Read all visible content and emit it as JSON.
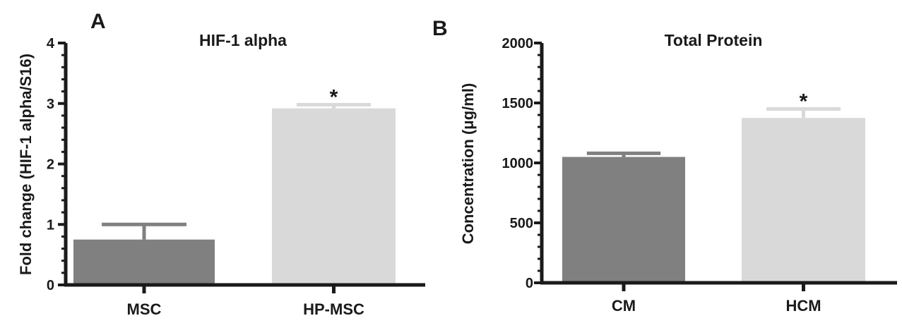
{
  "chart_data": [
    {
      "type": "bar",
      "panel_label": "A",
      "title": "HIF-1 alpha",
      "xlabel": "",
      "ylabel": "Fold change (HIF-1 alpha/S16)",
      "categories": [
        "MSC",
        "HP-MSC"
      ],
      "values": [
        0.75,
        2.92
      ],
      "error_upper": [
        1.0,
        2.98
      ],
      "significance": [
        "",
        "*"
      ],
      "ylim": [
        0,
        4
      ],
      "yticks": [
        "0",
        "1",
        "2",
        "3",
        "4"
      ],
      "colors": [
        "#808080",
        "#d9d9d9"
      ],
      "grid": false
    },
    {
      "type": "bar",
      "panel_label": "B",
      "title": "Total Protein",
      "xlabel": "",
      "ylabel": "Concentration (μg/ml)",
      "categories": [
        "CM",
        "HCM"
      ],
      "values": [
        1050,
        1375
      ],
      "error_upper": [
        1080,
        1450
      ],
      "significance": [
        "",
        "*"
      ],
      "ylim": [
        0,
        2000
      ],
      "yticks": [
        "0",
        "500",
        "1000",
        "1500",
        "2000"
      ],
      "colors": [
        "#808080",
        "#d9d9d9"
      ],
      "grid": false
    }
  ]
}
